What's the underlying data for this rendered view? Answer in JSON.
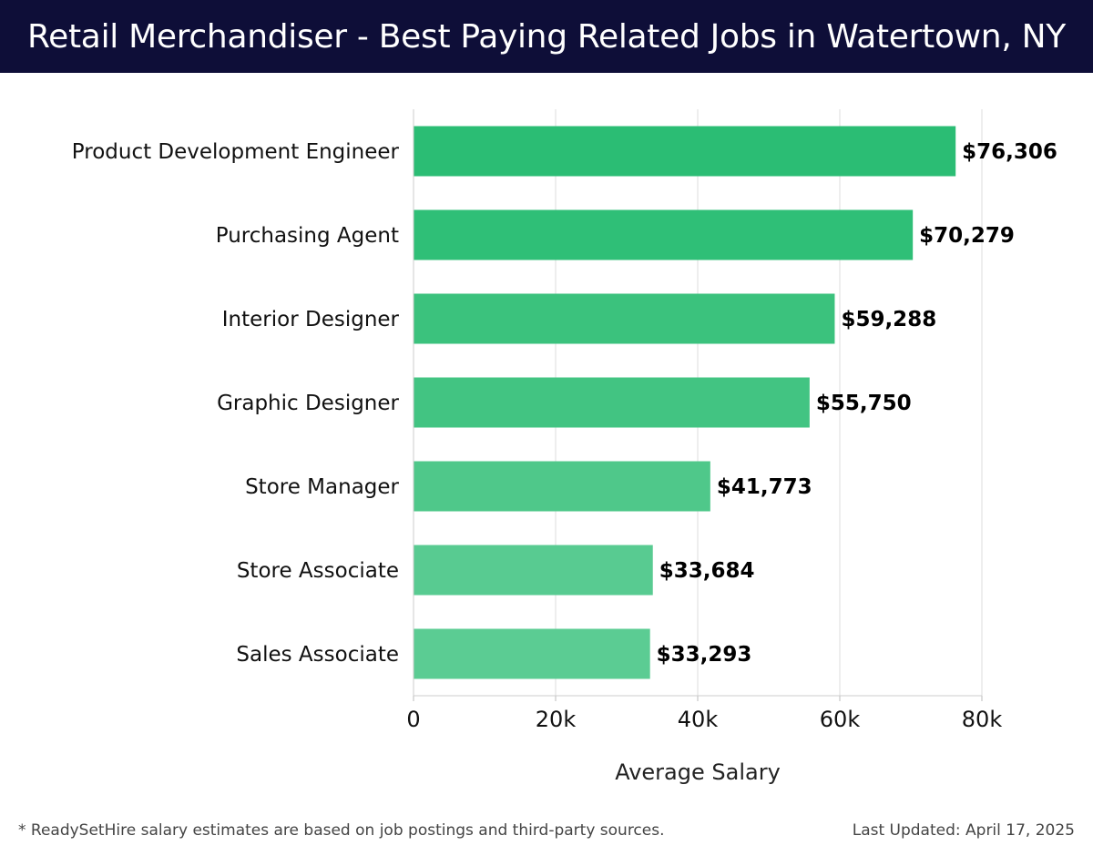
{
  "chart_data": {
    "type": "bar",
    "orientation": "horizontal",
    "title": "Retail Merchandiser - Best Paying Related Jobs in Watertown, NY",
    "xlabel": "Average Salary",
    "ylabel": "",
    "xlim": [
      0,
      80000
    ],
    "xticks": [
      0,
      20000,
      40000,
      60000,
      80000
    ],
    "xtick_labels": [
      "0",
      "20k",
      "40k",
      "60k",
      "80k"
    ],
    "grid": true,
    "categories": [
      "Product Development Engineer",
      "Purchasing Agent",
      "Interior Designer",
      "Graphic Designer",
      "Store Manager",
      "Store Associate",
      "Sales Associate"
    ],
    "values": [
      76306,
      70279,
      59288,
      55750,
      41773,
      33684,
      33293
    ],
    "value_labels": [
      "$76,306",
      "$70,279",
      "$59,288",
      "$55,750",
      "$41,773",
      "$33,684",
      "$33,293"
    ],
    "bar_colors": [
      "#2bbd74",
      "#2fbf77",
      "#3bc27d",
      "#42c482",
      "#4fc88a",
      "#58cb91",
      "#5bcc93"
    ]
  },
  "footer": {
    "note": "* ReadySetHire salary estimates are based on job postings and third-party sources.",
    "updated": "Last Updated: April 17, 2025"
  }
}
